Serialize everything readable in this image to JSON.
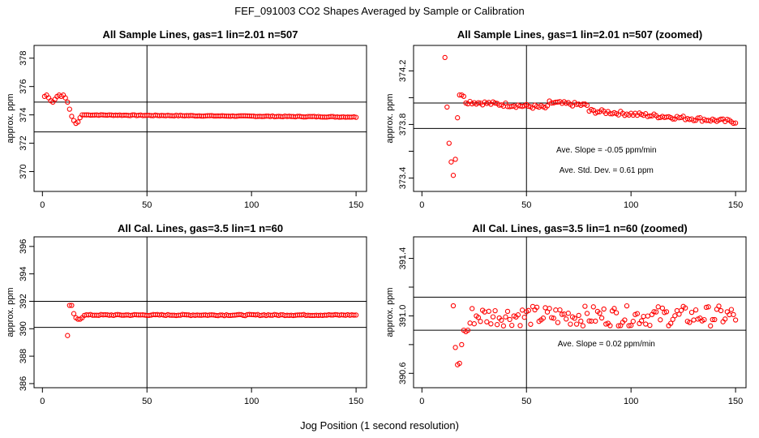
{
  "page": {
    "title": "FEF_091003  CO2 Shapes Averaged by Sample or Calibration",
    "xlabel": "Jog Position (1 second resolution)"
  },
  "colors": {
    "points": "#ff0000",
    "axes": "#000000"
  },
  "chart_data": [
    {
      "type": "scatter",
      "title": "All Sample Lines, gas=1 lin=2.01 n=507",
      "ylabel": "approx. ppm",
      "xlim": [
        -4,
        155
      ],
      "ylim": [
        368.6,
        378.9
      ],
      "xticks": [
        0,
        50,
        100,
        150
      ],
      "yticks": [
        370,
        372,
        374,
        376,
        378
      ],
      "hlines": [
        374.9,
        372.8
      ],
      "vline": 50,
      "annotations": [],
      "series": [
        {
          "x": [],
          "y": [],
          "x_range": [
            1,
            150
          ],
          "y_values_first": [
            375.3,
            375.4,
            375.2,
            375.0,
            374.9,
            375.1,
            375.3,
            375.4,
            375.3,
            375.4,
            375.2,
            374.9,
            374.4,
            373.9,
            373.6,
            373.4,
            373.5,
            373.8,
            374.0,
            374.0
          ],
          "y_plateau": 374.0,
          "y_end": 373.85
        }
      ]
    },
    {
      "type": "scatter",
      "title": "All Sample Lines, gas=1 lin=2.01 n=507 (zoomed)",
      "ylabel": "approx. ppm",
      "xlim": [
        -4,
        155
      ],
      "ylim": [
        373.3,
        374.39
      ],
      "xticks": [
        0,
        50,
        100,
        150
      ],
      "yticks": [
        373.4,
        373.6,
        373.8,
        374.0,
        374.2
      ],
      "ytick_labels": [
        "373.4",
        "",
        "373.8",
        "",
        "374.2"
      ],
      "hlines": [
        373.96,
        373.77
      ],
      "vline": 50,
      "annotations": [
        "Ave. Slope =  -0.05  ppm/min",
        "Ave. Std. Dev. =  0.61  ppm"
      ],
      "series": [
        {
          "x": [
            11,
            12,
            13,
            14,
            15,
            16,
            17,
            18,
            19,
            20
          ],
          "y": [
            374.3,
            373.93,
            373.66,
            373.52,
            373.42,
            373.54,
            373.85,
            374.02,
            374.02,
            374.01
          ],
          "x_range_rest": [
            21,
            150
          ],
          "y_rest_start": 373.97,
          "y_rest_end": 373.82
        }
      ]
    },
    {
      "type": "scatter",
      "title": "All Cal. Lines, gas=3.5 lin=1 n=60",
      "ylabel": "approx. ppm",
      "xlim": [
        -4,
        155
      ],
      "ylim": [
        385.7,
        396.7
      ],
      "xticks": [
        0,
        50,
        100,
        150
      ],
      "yticks": [
        386,
        388,
        390,
        392,
        394,
        396
      ],
      "hlines": [
        392.0,
        390.1
      ],
      "vline": 50,
      "annotations": [],
      "series": [
        {
          "x": [
            12,
            13,
            14,
            15,
            16,
            17,
            18,
            19
          ],
          "y": [
            389.5,
            391.7,
            391.7,
            391.1,
            390.8,
            390.7,
            390.7,
            390.8
          ],
          "x_range_rest": [
            20,
            150
          ],
          "y_rest": 391.0
        }
      ]
    },
    {
      "type": "scatter",
      "title": "All Cal. Lines, gas=3.5 lin=1 n=60 (zoomed)",
      "ylabel": "approx. ppm",
      "xlim": [
        -4,
        155
      ],
      "ylim": [
        390.5,
        391.55
      ],
      "xticks": [
        0,
        50,
        100,
        150
      ],
      "yticks": [
        390.6,
        390.8,
        391.0,
        391.2,
        391.4
      ],
      "ytick_labels": [
        "390.6",
        "",
        "391.0",
        "",
        "391.4"
      ],
      "hlines": [
        391.13,
        390.9
      ],
      "vline": 50,
      "annotations": [
        "Ave. Slope =  0.02  ppm/min"
      ],
      "series": [
        {
          "x": [
            15,
            16,
            17,
            18,
            19,
            20,
            21,
            22,
            23
          ],
          "y": [
            391.07,
            390.78,
            390.66,
            390.67,
            390.8,
            390.9,
            390.89,
            390.9,
            390.95
          ],
          "x_range_rest": [
            24,
            150
          ],
          "y_rest": 391.0
        }
      ]
    }
  ]
}
